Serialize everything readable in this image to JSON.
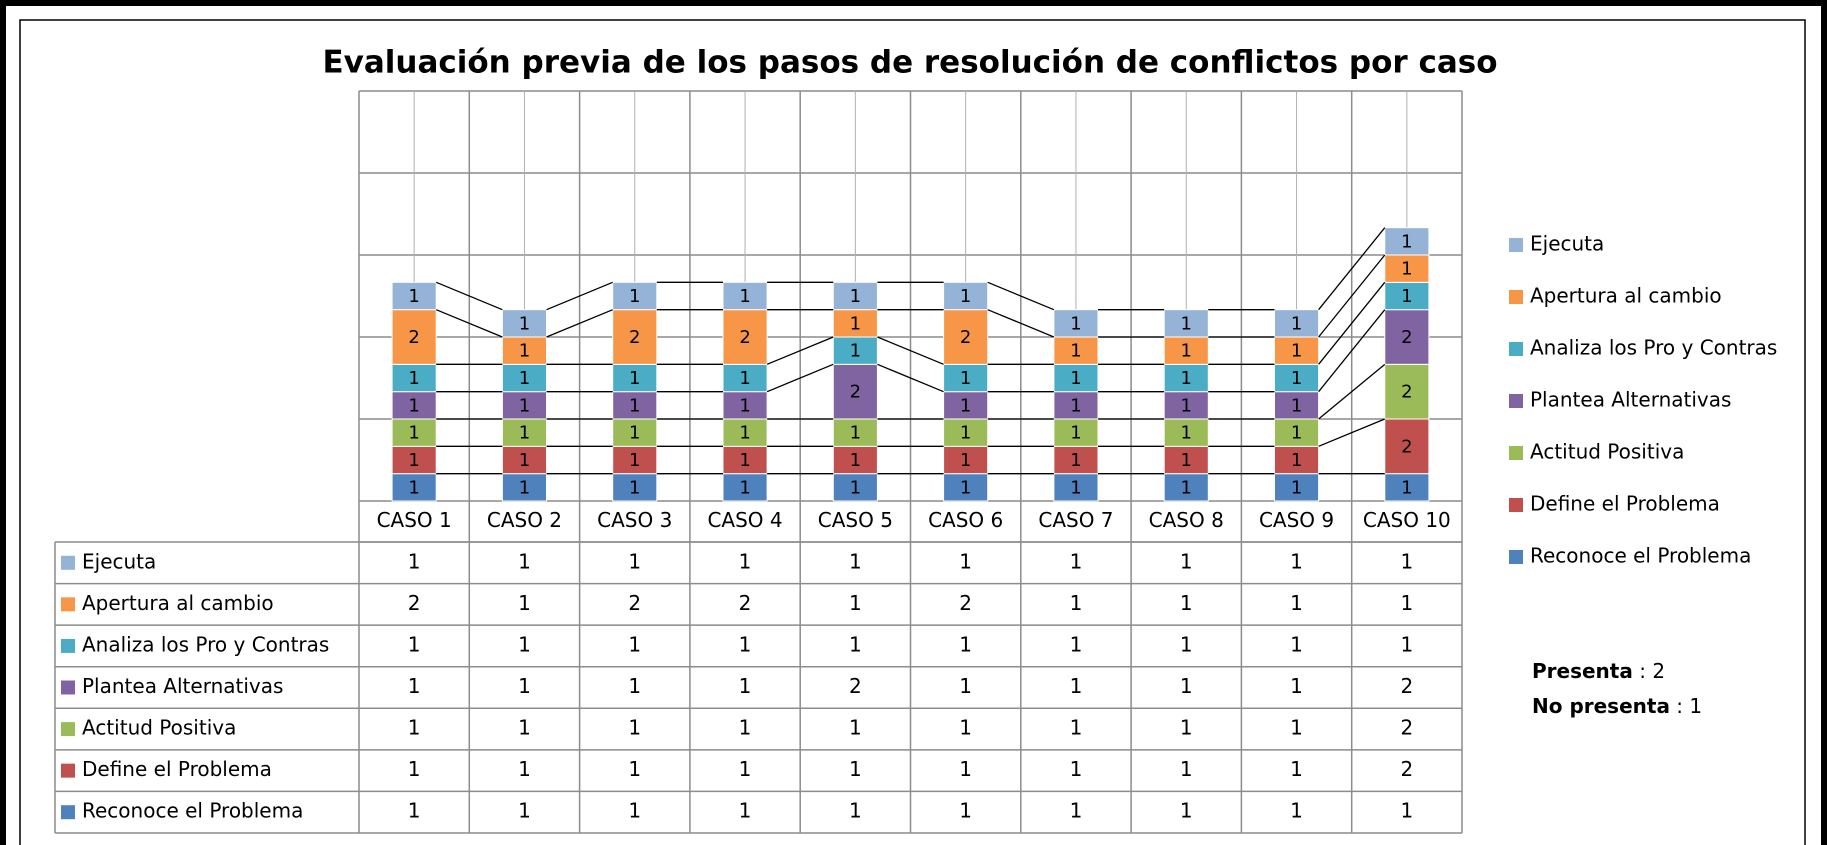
{
  "chart_data": {
    "type": "bar",
    "stacked": true,
    "title": "Evaluación previa de los pasos de resolución de conflictos por caso",
    "categories": [
      "CASO 1",
      "CASO 2",
      "CASO 3",
      "CASO 4",
      "CASO 5",
      "CASO 6",
      "CASO 7",
      "CASO 8",
      "CASO 9",
      "CASO 10"
    ],
    "series": [
      {
        "name": "Reconoce el Problema",
        "color": "#4f81bd",
        "values": [
          1,
          1,
          1,
          1,
          1,
          1,
          1,
          1,
          1,
          1
        ]
      },
      {
        "name": "Define el Problema",
        "color": "#c0504d",
        "values": [
          1,
          1,
          1,
          1,
          1,
          1,
          1,
          1,
          1,
          2
        ]
      },
      {
        "name": "Actitud Positiva",
        "color": "#9bbb59",
        "values": [
          1,
          1,
          1,
          1,
          1,
          1,
          1,
          1,
          1,
          2
        ]
      },
      {
        "name": "Plantea Alternativas",
        "color": "#8064a2",
        "values": [
          1,
          1,
          1,
          1,
          2,
          1,
          1,
          1,
          1,
          2
        ]
      },
      {
        "name": "Analiza los Pro y Contras",
        "color": "#4bacc6",
        "values": [
          1,
          1,
          1,
          1,
          1,
          1,
          1,
          1,
          1,
          1
        ]
      },
      {
        "name": "Apertura al cambio",
        "color": "#f79646",
        "values": [
          2,
          1,
          2,
          2,
          1,
          2,
          1,
          1,
          1,
          1
        ]
      },
      {
        "name": "Ejecuta",
        "color": "#95b3d7",
        "values": [
          1,
          1,
          1,
          1,
          1,
          1,
          1,
          1,
          1,
          1
        ]
      }
    ],
    "ylim": [
      0,
      15
    ],
    "yticks": [
      0,
      3,
      6,
      9,
      12,
      15
    ],
    "grid": true,
    "legend": "right",
    "data_table": true,
    "annotations": [
      {
        "bold": "Presenta",
        "rest": " : 2"
      },
      {
        "bold": "No presenta",
        "rest": " : 1"
      }
    ]
  }
}
